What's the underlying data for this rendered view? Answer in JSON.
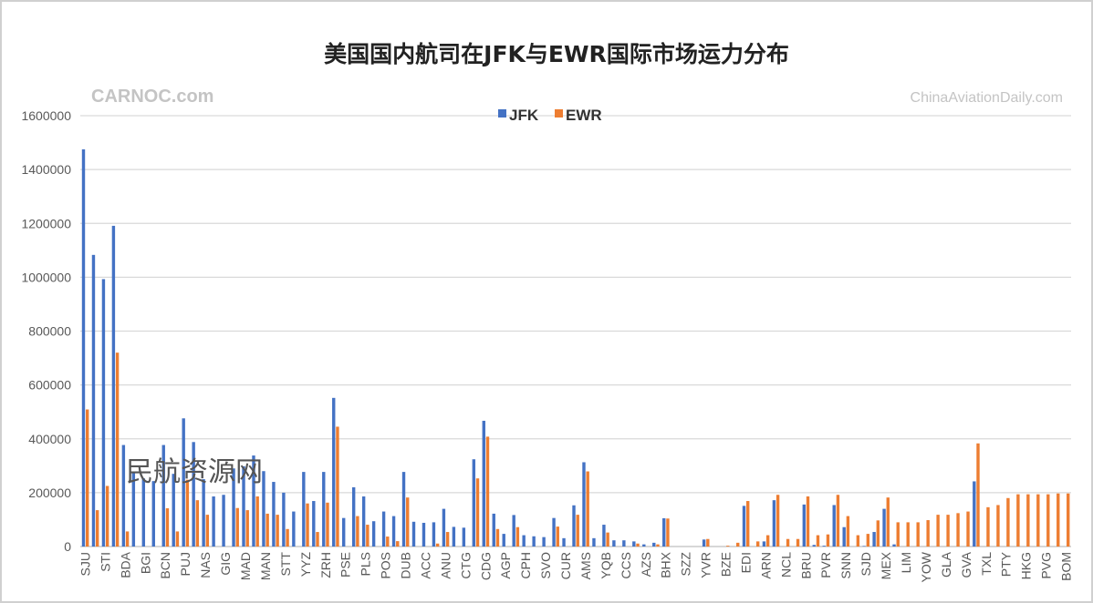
{
  "chart_data": {
    "type": "bar",
    "title": "美国国内航司在JFK与EWR国际市场运力分布",
    "xlabel": "",
    "ylabel": "",
    "ylim": [
      0,
      1600000
    ],
    "yticks": [
      "0",
      "200000",
      "400000",
      "600000",
      "800000",
      "1000000",
      "1200000",
      "1400000",
      "1600000"
    ],
    "grid": true,
    "legend_position": "top-center",
    "categories": [
      "SJU",
      "",
      "STI",
      "",
      "BDA",
      "",
      "BGI",
      "",
      "BCN",
      "",
      "PUJ",
      "",
      "NAS",
      "",
      "GIG",
      "",
      "MAD",
      "",
      "MAN",
      "",
      "STT",
      "",
      "YYZ",
      "",
      "ZRH",
      "",
      "PSE",
      "",
      "PLS",
      "",
      "POS",
      "",
      "DUB",
      "",
      "ACC",
      "",
      "ANU",
      "",
      "CTG",
      "",
      "CDG",
      "",
      "AGP",
      "",
      "CPH",
      "",
      "SVO",
      "",
      "CUR",
      "",
      "AMS",
      "",
      "YQB",
      "",
      "CCS",
      "",
      "AZS",
      "",
      "BHX",
      "",
      "SZZ",
      "",
      "YVR",
      "",
      "BZE",
      "",
      "EDI",
      "",
      "ARN",
      "",
      "NCL",
      "",
      "BRU",
      "",
      "PVR",
      "",
      "SNN",
      "",
      "SJD",
      "",
      "MEX",
      "",
      "LIM",
      "",
      "YOW",
      "",
      "GLA",
      "",
      "GVA",
      "",
      "TXL",
      "",
      "PTY",
      "",
      "HKG",
      "",
      "PVG",
      "",
      "BOM"
    ],
    "series": [
      {
        "name": "JFK",
        "color": "#4472C4",
        "values": [
          1475000,
          1083000,
          993000,
          1191000,
          377000,
          277000,
          253000,
          243000,
          377000,
          270000,
          476000,
          388000,
          250000,
          186000,
          192000,
          290000,
          298000,
          338000,
          280000,
          240000,
          200000,
          130000,
          277000,
          169000,
          277000,
          552000,
          106000,
          220000,
          186000,
          94000,
          130000,
          113000,
          277000,
          92000,
          88000,
          90000,
          140000,
          73000,
          70000,
          324000,
          467000,
          122000,
          47000,
          117000,
          42000,
          38000,
          35000,
          106000,
          31000,
          153000,
          313000,
          31000,
          81000,
          23000,
          23000,
          19000,
          8000,
          14000,
          105000,
          0,
          0,
          0,
          26000,
          0,
          0,
          0,
          151000,
          0,
          19000,
          172000,
          0,
          0,
          156000,
          6000,
          3000,
          154000,
          72000,
          0,
          2000,
          54000,
          140000,
          8000,
          0,
          0,
          0,
          0,
          0,
          0,
          0,
          242000,
          0,
          0,
          0,
          0,
          0,
          0,
          0,
          0,
          0
        ]
      },
      {
        "name": "EWR",
        "color": "#ED7D31",
        "values": [
          509000,
          135000,
          225000,
          720000,
          56000,
          0,
          0,
          0,
          142000,
          56000,
          248000,
          172000,
          118000,
          0,
          0,
          143000,
          135000,
          186000,
          122000,
          118000,
          65000,
          0,
          160000,
          54000,
          163000,
          445000,
          0,
          113000,
          81000,
          0,
          37000,
          20000,
          182000,
          0,
          0,
          11000,
          54000,
          0,
          0,
          253000,
          408000,
          65000,
          0,
          72000,
          0,
          0,
          0,
          74000,
          0,
          118000,
          279000,
          0,
          52000,
          0,
          0,
          11000,
          0,
          8000,
          104000,
          0,
          0,
          0,
          28000,
          0,
          3000,
          14000,
          169000,
          19000,
          42000,
          192000,
          28000,
          28000,
          186000,
          42000,
          45000,
          192000,
          113000,
          42000,
          47000,
          97000,
          182000,
          90000,
          90000,
          90000,
          98000,
          118000,
          118000,
          124000,
          130000,
          383000,
          146000,
          154000,
          180000,
          194000,
          194000,
          194000,
          194000,
          197000,
          197000
        ]
      }
    ]
  },
  "watermarks": {
    "center": "民航资源网",
    "bottom_left": "CARNOC.com",
    "bottom_right": "ChinaAviationDaily.com"
  }
}
